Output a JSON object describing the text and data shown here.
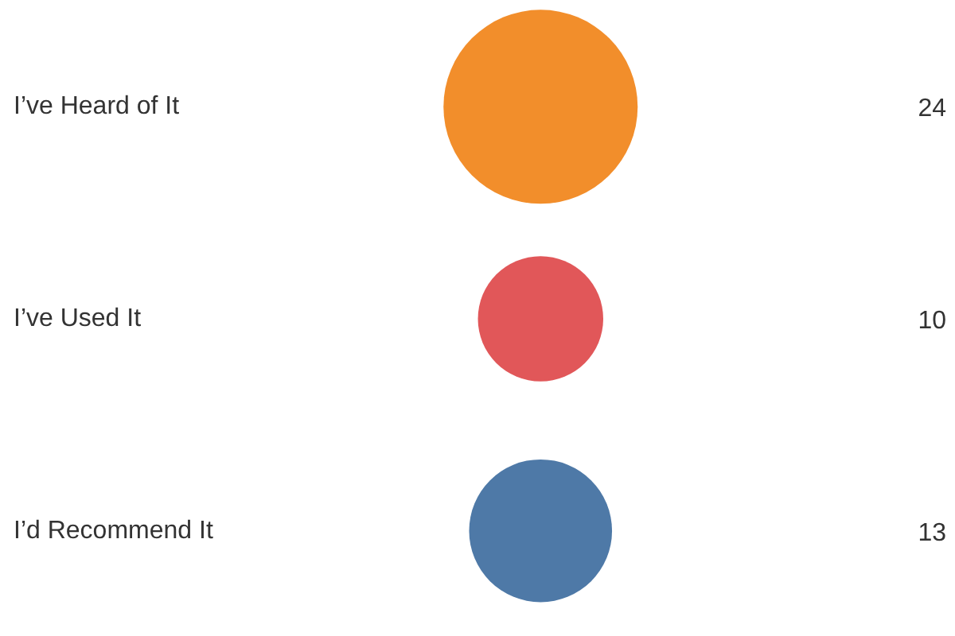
{
  "chart_data": {
    "type": "other",
    "categories": [
      "I’ve Heard of It",
      "I’ve Used It",
      "I’d Recommend It"
    ],
    "values": [
      24,
      10,
      13
    ],
    "colors": [
      "#f28e2b",
      "#e15759",
      "#4e79a7"
    ],
    "data_labels": true
  }
}
